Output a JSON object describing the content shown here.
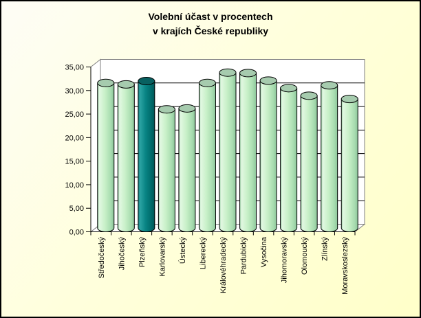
{
  "window": {
    "border_color": "#000000",
    "background_from": "#fefdf6",
    "background_mid": "#ffffdd",
    "background_to": "#ffffc9"
  },
  "chart_data": {
    "type": "bar",
    "style": "3d-cylinder",
    "title_line1": "Volební účast v procentech",
    "title_line2": "v krajích České republiky",
    "categories": [
      "Středočeský",
      "Jihočeský",
      "Plzeňský",
      "Karlovarský",
      "Ústecký",
      "Liberecký",
      "Královéhradecký",
      "Pardubický",
      "Vysočina",
      "Jihomoravský",
      "Olomoucký",
      "Zlínský",
      "Moravskoslezský"
    ],
    "values": [
      30.8,
      30.5,
      31.2,
      25.2,
      25.4,
      30.8,
      33.0,
      32.9,
      31.3,
      29.7,
      28.1,
      30.3,
      27.4
    ],
    "highlight_index": 2,
    "xlabel": "",
    "ylabel": "",
    "ylim": [
      0,
      35
    ],
    "ytick_step": 5,
    "ytick_labels": [
      "0,00",
      "5,00",
      "10,00",
      "15,00",
      "20,00",
      "25,00",
      "30,00",
      "35,00"
    ],
    "grid": true,
    "legend": "none",
    "decimal_separator": ",",
    "colors": {
      "plot_bg": "#ffffff",
      "grid_line": "#000000",
      "wall_edge": "#7f7f7f",
      "axis_line": "#000000",
      "text": "#000000",
      "bar_top": "#a6cbae",
      "highlight_top": "#086060",
      "bar_body_stops": [
        {
          "offset": 0,
          "color": "#8fc89c"
        },
        {
          "offset": 0.1,
          "color": "#e2f8e2"
        },
        {
          "offset": 0.45,
          "color": "#c8f0c8"
        },
        {
          "offset": 0.8,
          "color": "#a8dcb0"
        },
        {
          "offset": 1,
          "color": "#8cc69a"
        }
      ],
      "highlight_body_stops": [
        {
          "offset": 0,
          "color": "#117f7f"
        },
        {
          "offset": 0.12,
          "color": "#2ba3a3"
        },
        {
          "offset": 0.45,
          "color": "#088484"
        },
        {
          "offset": 0.8,
          "color": "#006a6a"
        },
        {
          "offset": 1,
          "color": "#005858"
        }
      ]
    }
  }
}
